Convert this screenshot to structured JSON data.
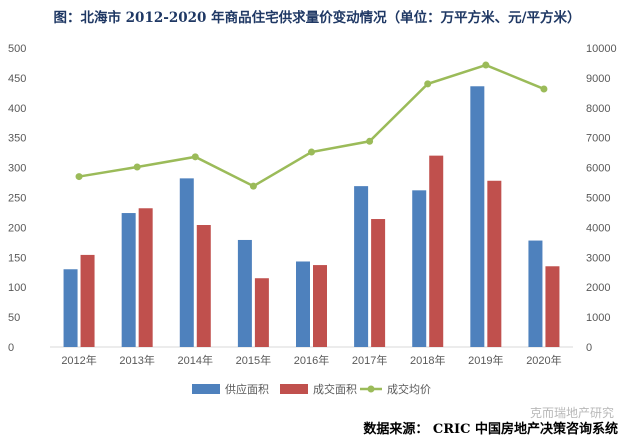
{
  "chart_data": {
    "type": "bar+line",
    "title": "图：北海市 2012-2020 年商品住宅供求量价变动情况（单位：万平方米、元/平方米）",
    "categories": [
      "2012年",
      "2013年",
      "2014年",
      "2015年",
      "2016年",
      "2017年",
      "2018年",
      "2019年",
      "2020年"
    ],
    "series": [
      {
        "name": "供应面积",
        "type": "bar",
        "axis": "left",
        "color": "#4e81bd",
        "values": [
          130,
          224,
          282,
          179,
          143,
          269,
          262,
          436,
          178
        ]
      },
      {
        "name": "成交面积",
        "type": "bar",
        "axis": "left",
        "color": "#c0504d",
        "values": [
          154,
          232,
          204,
          115,
          137,
          214,
          320,
          278,
          135
        ]
      },
      {
        "name": "成交均价",
        "type": "line",
        "axis": "right",
        "color": "#9bbb59",
        "values": [
          5700,
          6020,
          6360,
          5380,
          6520,
          6880,
          8800,
          9430,
          8630
        ]
      }
    ],
    "y_left": {
      "min": 0,
      "max": 500,
      "step": 50,
      "ticks": [
        "0",
        "50",
        "100",
        "150",
        "200",
        "250",
        "300",
        "350",
        "400",
        "450",
        "500"
      ]
    },
    "y_right": {
      "min": 0,
      "max": 10000,
      "step": 1000,
      "ticks": [
        "0",
        "1000",
        "2000",
        "3000",
        "4000",
        "5000",
        "6000",
        "7000",
        "8000",
        "9000",
        "10000"
      ]
    },
    "legend": [
      "供应面积",
      "成交面积",
      "成交均价"
    ],
    "legend_position": "bottom",
    "grid": false
  },
  "footer": {
    "source": "数据来源：  CRIC 中国房地产决策咨询系统",
    "watermark": "克而瑞地产研究"
  }
}
